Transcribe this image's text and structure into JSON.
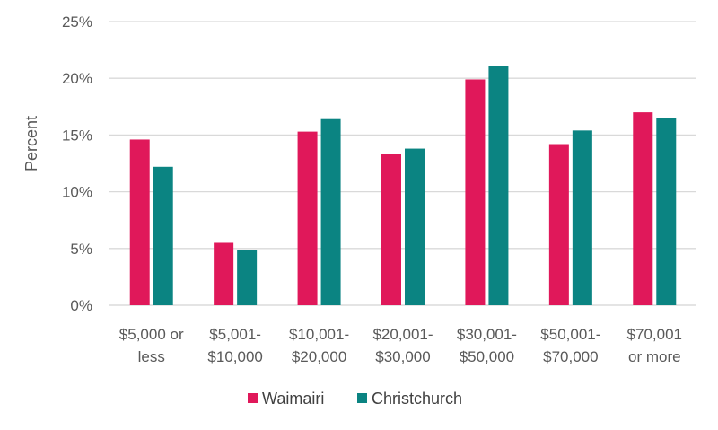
{
  "chart_data": {
    "type": "bar",
    "categories": [
      [
        "$5,000 or",
        "less"
      ],
      [
        "$5,001-",
        "$10,000"
      ],
      [
        "$10,001-",
        "$20,000"
      ],
      [
        "$20,001-",
        "$30,000"
      ],
      [
        "$30,001-",
        "$50,000"
      ],
      [
        "$50,001-",
        "$70,000"
      ],
      [
        "$70,001",
        "or more"
      ]
    ],
    "series": [
      {
        "name": "Waimairi",
        "color": "#e0185a",
        "values": [
          14.6,
          5.5,
          15.3,
          13.3,
          19.9,
          14.2,
          17.0
        ]
      },
      {
        "name": "Christchurch",
        "color": "#0b8482",
        "values": [
          12.2,
          4.9,
          16.4,
          13.8,
          21.1,
          15.4,
          16.5
        ]
      }
    ],
    "title": "",
    "xlabel": "",
    "ylabel": "Percent",
    "ylim": [
      0,
      25
    ],
    "yticks": [
      0,
      5,
      10,
      15,
      20,
      25
    ],
    "ytick_format": "%",
    "grid": true,
    "legend_position": "bottom"
  }
}
